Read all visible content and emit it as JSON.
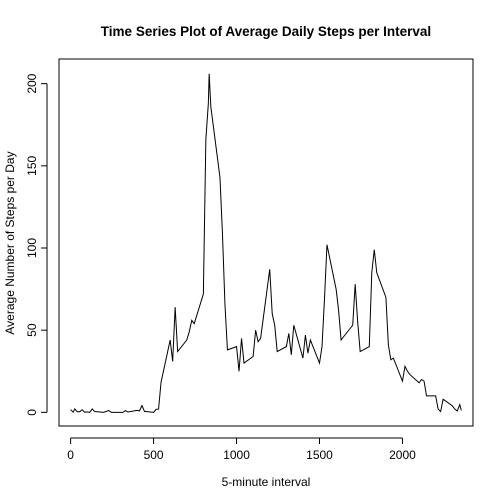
{
  "chart_data": {
    "type": "line",
    "title": "Time Series Plot of Average Daily Steps per Interval",
    "xlabel": "5-minute interval",
    "ylabel": "Average Number of Steps per Day",
    "xlim": [
      -70,
      2425
    ],
    "ylim": [
      -8.3,
      215
    ],
    "xticks": [
      0,
      500,
      1000,
      1500,
      2000
    ],
    "yticks": [
      0,
      50,
      100,
      150,
      200
    ],
    "grid": false,
    "legend": "none",
    "line_color": "#000000",
    "series": [
      {
        "x": [
          0,
          15,
          25,
          40,
          55,
          70,
          85,
          100,
          115,
          130,
          145,
          200,
          215,
          230,
          245,
          300,
          315,
          330,
          345,
          400,
          415,
          430,
          445,
          500,
          515,
          530,
          545,
          600,
          615,
          630,
          645,
          700,
          715,
          730,
          745,
          800,
          815,
          830,
          835,
          845,
          900,
          915,
          930,
          945,
          1000,
          1015,
          1030,
          1045,
          1100,
          1115,
          1130,
          1145,
          1200,
          1215,
          1230,
          1245,
          1300,
          1315,
          1330,
          1345,
          1400,
          1415,
          1430,
          1445,
          1500,
          1515,
          1530,
          1545,
          1600,
          1615,
          1630,
          1645,
          1700,
          1715,
          1730,
          1745,
          1800,
          1815,
          1830,
          1845,
          1900,
          1915,
          1930,
          1945,
          2000,
          2015,
          2030,
          2045,
          2100,
          2115,
          2130,
          2145,
          2200,
          2215,
          2230,
          2245,
          2300,
          2315,
          2330,
          2345,
          2355
        ],
        "values": [
          1.7,
          0.1,
          2.1,
          0.4,
          0.4,
          1.6,
          0.1,
          0.3,
          0.0,
          2.1,
          0.5,
          0.0,
          0.6,
          1.1,
          0.0,
          0.0,
          0.0,
          1.1,
          0.2,
          1.2,
          0.9,
          4.1,
          0.6,
          0.0,
          1.8,
          2.0,
          18.3,
          44.0,
          31.0,
          64.0,
          37.0,
          44.0,
          49.0,
          56.0,
          54.0,
          72.0,
          166.0,
          188.0,
          206.0,
          186.0,
          143.0,
          109.0,
          66.0,
          38.0,
          40.0,
          25.0,
          45.0,
          30.0,
          34.0,
          50.0,
          43.0,
          45.0,
          87.0,
          60.0,
          53.0,
          37.0,
          40.0,
          48.0,
          35.0,
          53.0,
          33.0,
          47.0,
          36.0,
          44.0,
          30.0,
          40.0,
          69.0,
          102.0,
          75.0,
          62.0,
          44.0,
          46.0,
          53.0,
          78.0,
          55.0,
          37.0,
          40.0,
          85.0,
          99.0,
          85.0,
          70.0,
          41.0,
          32.0,
          33.0,
          19.0,
          28.0,
          25.0,
          23.0,
          18.0,
          20.0,
          19.0,
          10.0,
          10.0,
          2.0,
          0.5,
          8.0,
          4.0,
          2.0,
          0.8,
          4.7,
          1.1
        ]
      }
    ]
  }
}
